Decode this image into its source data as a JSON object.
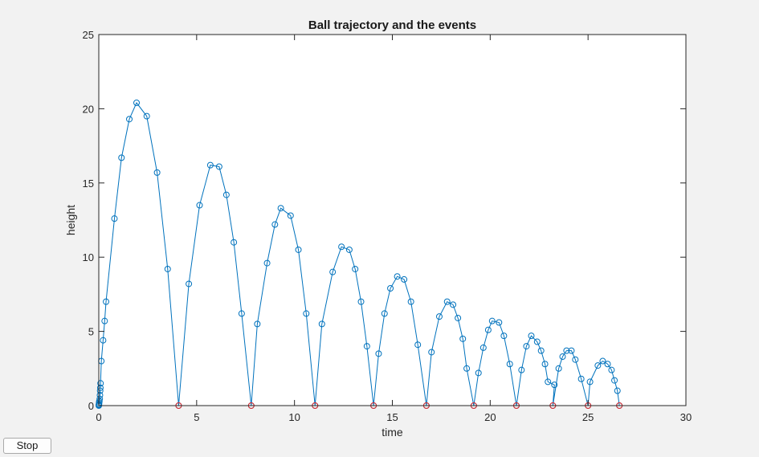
{
  "controls": {
    "stop_label": "Stop"
  },
  "colors": {
    "trajectory": "#0072BD",
    "event": "#E32A2A",
    "axes": "#262626",
    "plot_bg": "#ffffff",
    "figure_bg": "#f2f2f2"
  },
  "chart_data": {
    "type": "line",
    "title": "Ball trajectory and the events",
    "xlabel": "time",
    "ylabel": "height",
    "xlim": [
      0,
      30
    ],
    "ylim": [
      0,
      25
    ],
    "xticks": [
      0,
      5,
      10,
      15,
      20,
      25,
      30
    ],
    "yticks": [
      0,
      5,
      10,
      15,
      20,
      25
    ],
    "grid": false,
    "legend": "none",
    "series": [
      {
        "style": "line-with-circle-markers",
        "color": "#0072BD",
        "points": [
          [
            0,
            0
          ],
          [
            0.004,
            0.05
          ],
          [
            0.01,
            0.1
          ],
          [
            0.02,
            0.2
          ],
          [
            0.03,
            0.3
          ],
          [
            0.05,
            0.45
          ],
          [
            0.06,
            0.7
          ],
          [
            0.07,
            1.0
          ],
          [
            0.08,
            1.2
          ],
          [
            0.09,
            1.5
          ],
          [
            0.13,
            3.0
          ],
          [
            0.22,
            4.4
          ],
          [
            0.3,
            5.7
          ],
          [
            0.37,
            7.0
          ],
          [
            0.8,
            12.6
          ],
          [
            1.16,
            16.7
          ],
          [
            1.56,
            19.3
          ],
          [
            1.93,
            20.4
          ],
          [
            2.45,
            19.5
          ],
          [
            2.98,
            15.7
          ],
          [
            3.52,
            9.2
          ],
          [
            4.08,
            0
          ],
          [
            4.6,
            8.2
          ],
          [
            5.15,
            13.5
          ],
          [
            5.7,
            16.2
          ],
          [
            6.15,
            16.1
          ],
          [
            6.52,
            14.2
          ],
          [
            6.9,
            11.0
          ],
          [
            7.3,
            6.2
          ],
          [
            7.79,
            0
          ],
          [
            8.1,
            5.5
          ],
          [
            8.6,
            9.6
          ],
          [
            9.0,
            12.2
          ],
          [
            9.3,
            13.3
          ],
          [
            9.8,
            12.8
          ],
          [
            10.2,
            10.5
          ],
          [
            10.6,
            6.2
          ],
          [
            11.05,
            0
          ],
          [
            11.4,
            5.5
          ],
          [
            11.95,
            9.0
          ],
          [
            12.4,
            10.7
          ],
          [
            12.8,
            10.5
          ],
          [
            13.1,
            9.2
          ],
          [
            13.4,
            7.0
          ],
          [
            13.7,
            4.0
          ],
          [
            14.04,
            0
          ],
          [
            14.3,
            3.5
          ],
          [
            14.6,
            6.2
          ],
          [
            14.9,
            7.9
          ],
          [
            15.25,
            8.7
          ],
          [
            15.6,
            8.5
          ],
          [
            15.95,
            7.0
          ],
          [
            16.3,
            4.1
          ],
          [
            16.74,
            0
          ],
          [
            17.0,
            3.6
          ],
          [
            17.4,
            6.0
          ],
          [
            17.8,
            7.0
          ],
          [
            18.1,
            6.8
          ],
          [
            18.35,
            5.9
          ],
          [
            18.6,
            4.5
          ],
          [
            18.8,
            2.5
          ],
          [
            19.16,
            0
          ],
          [
            19.4,
            2.2
          ],
          [
            19.65,
            3.9
          ],
          [
            19.9,
            5.1
          ],
          [
            20.1,
            5.7
          ],
          [
            20.45,
            5.6
          ],
          [
            20.7,
            4.7
          ],
          [
            21.0,
            2.8
          ],
          [
            21.34,
            0
          ],
          [
            21.6,
            2.4
          ],
          [
            21.85,
            4.0
          ],
          [
            22.1,
            4.7
          ],
          [
            22.4,
            4.3
          ],
          [
            22.6,
            3.7
          ],
          [
            22.8,
            2.8
          ],
          [
            22.95,
            1.6
          ],
          [
            23.28,
            1.4
          ],
          [
            23.2,
            0
          ],
          [
            23.5,
            2.5
          ],
          [
            23.7,
            3.3
          ],
          [
            23.9,
            3.7
          ],
          [
            24.15,
            3.7
          ],
          [
            24.35,
            3.1
          ],
          [
            24.65,
            1.8
          ],
          [
            25.0,
            0
          ],
          [
            25.1,
            1.6
          ],
          [
            25.5,
            2.7
          ],
          [
            25.75,
            3.0
          ],
          [
            26.0,
            2.8
          ],
          [
            26.2,
            2.4
          ],
          [
            26.35,
            1.7
          ],
          [
            26.5,
            1.0
          ],
          [
            26.6,
            0
          ]
        ]
      },
      {
        "style": "circle-markers",
        "color": "#E32A2A",
        "points": [
          [
            4.08,
            0
          ],
          [
            7.79,
            0
          ],
          [
            11.05,
            0
          ],
          [
            14.04,
            0
          ],
          [
            16.74,
            0
          ],
          [
            19.16,
            0
          ],
          [
            21.34,
            0
          ],
          [
            23.2,
            0
          ],
          [
            25.0,
            0
          ],
          [
            26.6,
            0
          ]
        ]
      }
    ]
  }
}
